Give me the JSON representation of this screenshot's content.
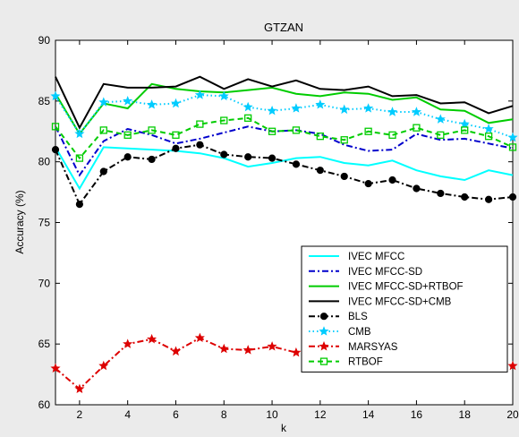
{
  "chart_data": {
    "type": "line",
    "title": "GTZAN",
    "xlabel": "k",
    "ylabel": "Accuracy (%)",
    "xlim": [
      1,
      20
    ],
    "ylim": [
      60,
      90
    ],
    "xticks": [
      "2",
      "4",
      "6",
      "8",
      "10",
      "12",
      "14",
      "16",
      "18",
      "20"
    ],
    "yticks": [
      "60",
      "65",
      "70",
      "75",
      "80",
      "85",
      "90"
    ],
    "grid": false,
    "legend_position": "right",
    "x": [
      1,
      2,
      3,
      4,
      5,
      6,
      7,
      8,
      9,
      10,
      11,
      12,
      13,
      14,
      15,
      16,
      17,
      18,
      19,
      20
    ],
    "series": [
      {
        "name": "IVEC MFCC",
        "color": "#00ffff",
        "style": "solid",
        "marker": "none",
        "values": [
          81.2,
          77.8,
          81.2,
          81.1,
          81.0,
          80.9,
          80.7,
          80.3,
          79.6,
          79.9,
          80.3,
          80.4,
          79.9,
          79.7,
          80.1,
          79.3,
          78.8,
          78.5,
          79.3,
          78.9
        ]
      },
      {
        "name": "IVEC MFCC-SD",
        "color": "#0000cc",
        "style": "dashdot",
        "marker": "none",
        "values": [
          82.9,
          78.9,
          81.7,
          82.7,
          82.2,
          81.5,
          81.9,
          82.4,
          82.9,
          82.5,
          82.6,
          82.3,
          81.4,
          80.9,
          81.0,
          82.3,
          81.8,
          81.9,
          81.5,
          81.1
        ]
      },
      {
        "name": "IVEC MFCC-SD+RTBOF",
        "color": "#00cc00",
        "style": "solid",
        "marker": "none",
        "values": [
          85.6,
          82.3,
          84.8,
          84.4,
          86.4,
          86.0,
          85.8,
          85.7,
          85.9,
          86.1,
          85.6,
          85.4,
          85.7,
          85.6,
          85.1,
          85.3,
          84.3,
          84.2,
          83.2,
          83.5
        ]
      },
      {
        "name": "IVEC MFCC-SD+CMB",
        "color": "#000000",
        "style": "solid",
        "marker": "none",
        "values": [
          87.0,
          82.8,
          86.4,
          86.1,
          86.1,
          86.2,
          87.0,
          86.0,
          86.8,
          86.2,
          86.7,
          86.0,
          85.9,
          86.2,
          85.4,
          85.5,
          84.8,
          84.9,
          84.0,
          84.6
        ]
      },
      {
        "name": "BLS",
        "color": "#000000",
        "style": "dashdot",
        "marker": "circle",
        "values": [
          81.0,
          76.5,
          79.2,
          80.4,
          80.2,
          81.1,
          81.4,
          80.6,
          80.4,
          80.3,
          79.8,
          79.3,
          78.8,
          78.2,
          78.5,
          77.8,
          77.4,
          77.1,
          76.9,
          77.1
        ]
      },
      {
        "name": "CMB",
        "color": "#00ccff",
        "style": "dotted",
        "marker": "star",
        "values": [
          85.4,
          82.3,
          84.9,
          85.0,
          84.7,
          84.8,
          85.5,
          85.4,
          84.5,
          84.2,
          84.4,
          84.7,
          84.3,
          84.4,
          84.1,
          84.1,
          83.5,
          83.1,
          82.7,
          82.0
        ]
      },
      {
        "name": "MARSYAS",
        "color": "#dd0000",
        "style": "dashdot",
        "marker": "star",
        "values": [
          63.0,
          61.3,
          63.2,
          65.0,
          65.4,
          64.4,
          65.5,
          64.6,
          64.5,
          64.8,
          64.3,
          64.4,
          64.7,
          64.3,
          64.3,
          64.1,
          63.7,
          63.2,
          63.1,
          63.2
        ]
      },
      {
        "name": "RTBOF",
        "color": "#00cc00",
        "style": "dashed",
        "marker": "square",
        "values": [
          82.9,
          80.3,
          82.6,
          82.2,
          82.6,
          82.2,
          83.1,
          83.4,
          83.6,
          82.5,
          82.6,
          82.1,
          81.8,
          82.5,
          82.2,
          82.8,
          82.2,
          82.6,
          82.1,
          81.2
        ]
      }
    ]
  }
}
